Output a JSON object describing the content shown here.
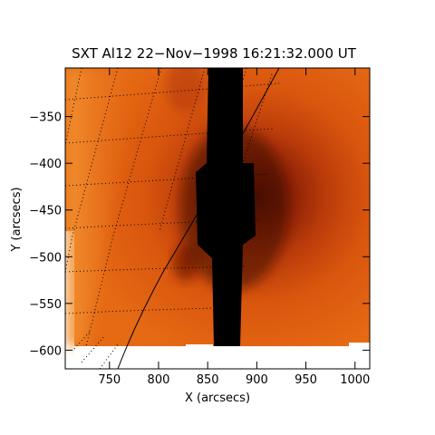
{
  "figure": {
    "title": "SXT Al12 22−Nov−1998 16:21:32.000 UT",
    "xlabel": "X (arcsecs)",
    "ylabel": "Y (arcsecs)",
    "x_ticks": [
      750,
      800,
      850,
      900,
      950,
      1000
    ],
    "x_tick_labels": [
      "750",
      "800",
      "850",
      "900",
      "950",
      "1000"
    ],
    "y_ticks": [
      -350,
      -400,
      -450,
      -500,
      -550,
      -600
    ],
    "y_tick_labels": [
      "−350",
      "−400",
      "−450",
      "−500",
      "−550",
      "−600"
    ],
    "xlim": [
      705,
      1015
    ],
    "ylim": [
      -620,
      -298
    ],
    "colors": {
      "background_orange": "#e0600f",
      "bright_orange": "#f08a2a",
      "dark_red": "#7a1c05",
      "saturation_bar": "#000000",
      "grid": "#000000",
      "frame": "#000000"
    }
  }
}
